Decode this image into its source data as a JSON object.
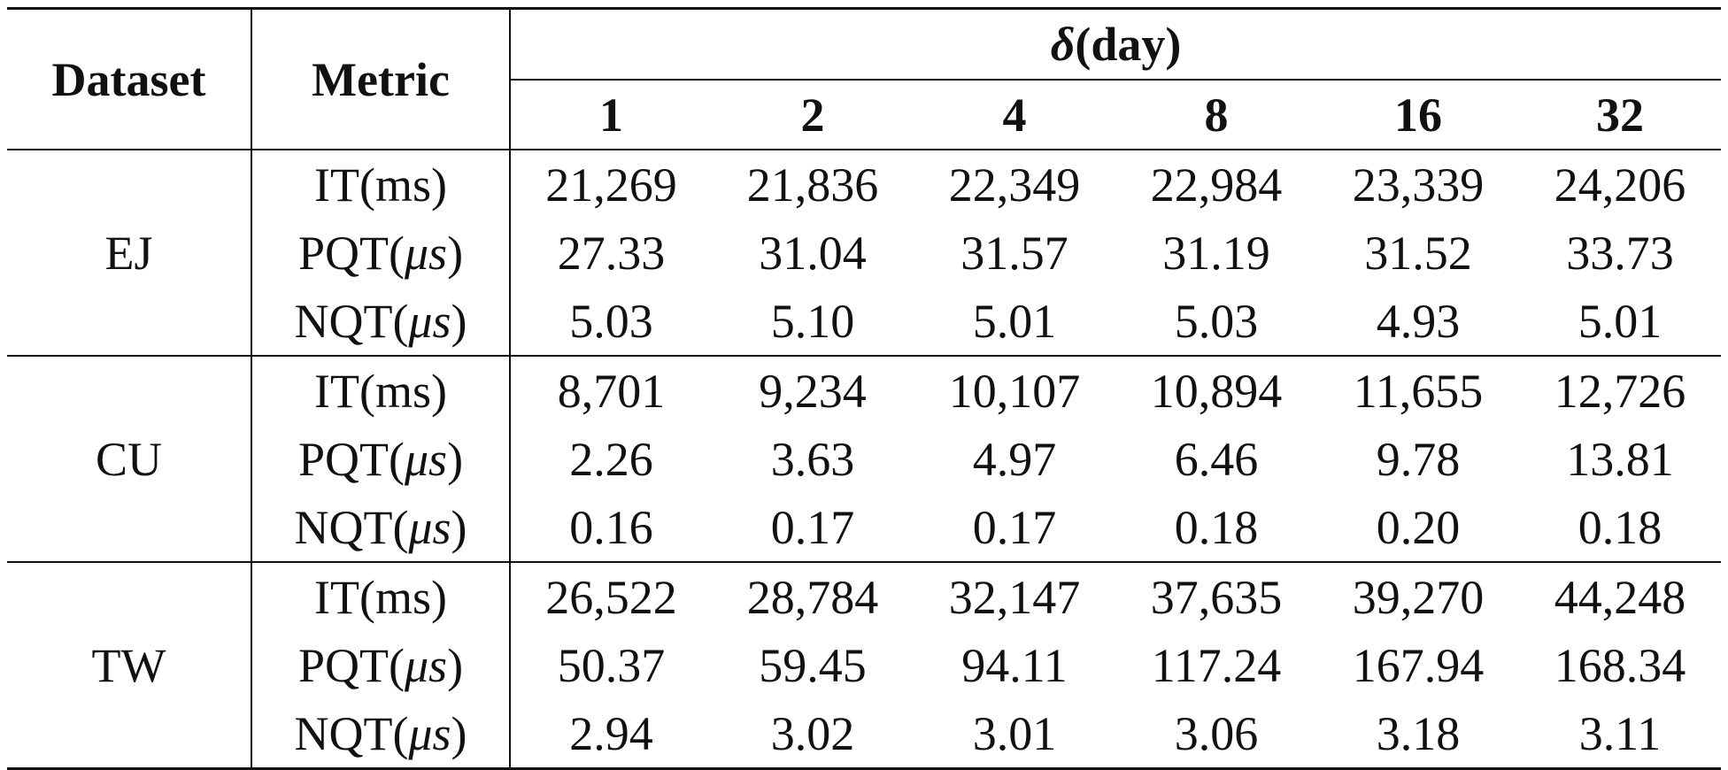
{
  "header": {
    "dataset_label": "Dataset",
    "metric_label": "Metric",
    "delta_symbol": "δ",
    "delta_unit": "(day)",
    "columns": [
      "1",
      "2",
      "4",
      "8",
      "16",
      "32"
    ]
  },
  "groups": [
    {
      "dataset": "EJ",
      "rows": [
        {
          "metric_base": "IT",
          "metric_unit": "ms",
          "metric_unit_italic": false,
          "values": [
            "21,269",
            "21,836",
            "22,349",
            "22,984",
            "23,339",
            "24,206"
          ]
        },
        {
          "metric_base": "PQT",
          "metric_unit": "μs",
          "metric_unit_italic": true,
          "values": [
            "27.33",
            "31.04",
            "31.57",
            "31.19",
            "31.52",
            "33.73"
          ]
        },
        {
          "metric_base": "NQT",
          "metric_unit": "μs",
          "metric_unit_italic": true,
          "values": [
            "5.03",
            "5.10",
            "5.01",
            "5.03",
            "4.93",
            "5.01"
          ]
        }
      ]
    },
    {
      "dataset": "CU",
      "rows": [
        {
          "metric_base": "IT",
          "metric_unit": "ms",
          "metric_unit_italic": false,
          "values": [
            "8,701",
            "9,234",
            "10,107",
            "10,894",
            "11,655",
            "12,726"
          ]
        },
        {
          "metric_base": "PQT",
          "metric_unit": "μs",
          "metric_unit_italic": true,
          "values": [
            "2.26",
            "3.63",
            "4.97",
            "6.46",
            "9.78",
            "13.81"
          ]
        },
        {
          "metric_base": "NQT",
          "metric_unit": "μs",
          "metric_unit_italic": true,
          "values": [
            "0.16",
            "0.17",
            "0.17",
            "0.18",
            "0.20",
            "0.18"
          ]
        }
      ]
    },
    {
      "dataset": "TW",
      "rows": [
        {
          "metric_base": "IT",
          "metric_unit": "ms",
          "metric_unit_italic": false,
          "values": [
            "26,522",
            "28,784",
            "32,147",
            "37,635",
            "39,270",
            "44,248"
          ]
        },
        {
          "metric_base": "PQT",
          "metric_unit": "μs",
          "metric_unit_italic": true,
          "values": [
            "50.37",
            "59.45",
            "94.11",
            "117.24",
            "167.94",
            "168.34"
          ]
        },
        {
          "metric_base": "NQT",
          "metric_unit": "μs",
          "metric_unit_italic": true,
          "values": [
            "2.94",
            "3.02",
            "3.01",
            "3.06",
            "3.18",
            "3.11"
          ]
        }
      ]
    }
  ]
}
